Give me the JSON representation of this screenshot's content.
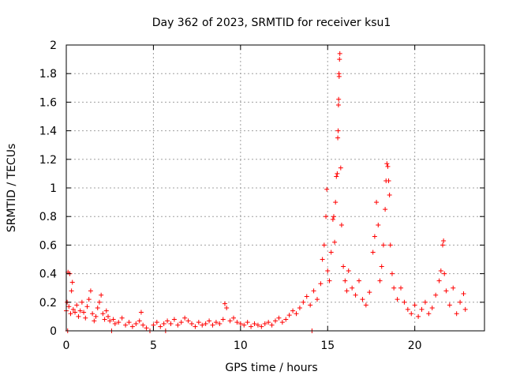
{
  "chart_data": {
    "type": "scatter",
    "title": "Day 362 of 2023, SRMTID for receiver ksu1",
    "xlabel": "GPS time / hours",
    "ylabel": "SRMTID / TECUs",
    "xlim": [
      0,
      24
    ],
    "ylim": [
      0,
      2
    ],
    "xticks": [
      0,
      5,
      10,
      15,
      20
    ],
    "yticks": [
      0,
      0.2,
      0.4,
      0.6,
      0.8,
      1,
      1.2,
      1.4,
      1.6,
      1.8,
      2
    ],
    "xtick_labels": [
      "0",
      "5",
      "10",
      "15",
      "20"
    ],
    "ytick_labels": [
      "0",
      "0.2",
      "0.4",
      "0.6",
      "0.8",
      "1",
      "1.2",
      "1.4",
      "1.6",
      "1.8",
      "2"
    ],
    "grid": true,
    "marker": "+",
    "color": "#ff0000",
    "series": [
      {
        "name": "ksu1",
        "points": [
          [
            0.0,
            0.14
          ],
          [
            0.05,
            0.2
          ],
          [
            0.08,
            0.0
          ],
          [
            0.1,
            0.41
          ],
          [
            0.15,
            0.17
          ],
          [
            0.2,
            0.4
          ],
          [
            0.25,
            0.12
          ],
          [
            0.3,
            0.28
          ],
          [
            0.35,
            0.34
          ],
          [
            0.4,
            0.15
          ],
          [
            0.5,
            0.13
          ],
          [
            0.6,
            0.18
          ],
          [
            0.7,
            0.1
          ],
          [
            0.8,
            0.14
          ],
          [
            0.9,
            0.2
          ],
          [
            1.0,
            0.13
          ],
          [
            1.1,
            0.09
          ],
          [
            1.2,
            0.17
          ],
          [
            1.3,
            0.22
          ],
          [
            1.4,
            0.28
          ],
          [
            1.5,
            0.12
          ],
          [
            1.6,
            0.07
          ],
          [
            1.7,
            0.1
          ],
          [
            1.8,
            0.16
          ],
          [
            1.9,
            0.2
          ],
          [
            2.0,
            0.25
          ],
          [
            2.1,
            0.12
          ],
          [
            2.2,
            0.08
          ],
          [
            2.3,
            0.14
          ],
          [
            2.4,
            0.1
          ],
          [
            2.5,
            0.07
          ],
          [
            2.6,
            0.0
          ],
          [
            2.7,
            0.08
          ],
          [
            2.8,
            0.05
          ],
          [
            3.0,
            0.06
          ],
          [
            3.2,
            0.09
          ],
          [
            3.4,
            0.04
          ],
          [
            3.6,
            0.06
          ],
          [
            3.8,
            0.03
          ],
          [
            4.0,
            0.05
          ],
          [
            4.2,
            0.07
          ],
          [
            4.3,
            0.13
          ],
          [
            4.4,
            0.04
          ],
          [
            4.6,
            0.02
          ],
          [
            4.8,
            0.0
          ],
          [
            5.0,
            0.04
          ],
          [
            5.2,
            0.06
          ],
          [
            5.4,
            0.03
          ],
          [
            5.6,
            0.05
          ],
          [
            5.7,
            0.0
          ],
          [
            5.8,
            0.07
          ],
          [
            6.0,
            0.05
          ],
          [
            6.2,
            0.08
          ],
          [
            6.4,
            0.04
          ],
          [
            6.6,
            0.06
          ],
          [
            6.8,
            0.09
          ],
          [
            7.0,
            0.07
          ],
          [
            7.2,
            0.05
          ],
          [
            7.4,
            0.03
          ],
          [
            7.6,
            0.06
          ],
          [
            7.8,
            0.04
          ],
          [
            8.0,
            0.05
          ],
          [
            8.2,
            0.07
          ],
          [
            8.4,
            0.04
          ],
          [
            8.6,
            0.06
          ],
          [
            8.8,
            0.05
          ],
          [
            9.0,
            0.08
          ],
          [
            9.1,
            0.19
          ],
          [
            9.2,
            0.16
          ],
          [
            9.4,
            0.07
          ],
          [
            9.6,
            0.09
          ],
          [
            9.8,
            0.06
          ],
          [
            10.0,
            0.05
          ],
          [
            10.2,
            0.04
          ],
          [
            10.4,
            0.06
          ],
          [
            10.6,
            0.03
          ],
          [
            10.8,
            0.05
          ],
          [
            11.0,
            0.04
          ],
          [
            11.2,
            0.03
          ],
          [
            11.4,
            0.05
          ],
          [
            11.6,
            0.06
          ],
          [
            11.8,
            0.04
          ],
          [
            12.0,
            0.07
          ],
          [
            12.2,
            0.09
          ],
          [
            12.4,
            0.06
          ],
          [
            12.6,
            0.08
          ],
          [
            12.8,
            0.11
          ],
          [
            13.0,
            0.14
          ],
          [
            13.2,
            0.12
          ],
          [
            13.4,
            0.16
          ],
          [
            13.6,
            0.2
          ],
          [
            13.8,
            0.24
          ],
          [
            14.0,
            0.18
          ],
          [
            14.1,
            0.0
          ],
          [
            14.2,
            0.28
          ],
          [
            14.4,
            0.22
          ],
          [
            14.6,
            0.33
          ],
          [
            14.7,
            0.5
          ],
          [
            14.8,
            0.6
          ],
          [
            14.9,
            0.8
          ],
          [
            14.95,
            0.99
          ],
          [
            15.0,
            0.42
          ],
          [
            15.1,
            0.35
          ],
          [
            15.2,
            0.55
          ],
          [
            15.3,
            0.78
          ],
          [
            15.35,
            0.8
          ],
          [
            15.4,
            0.62
          ],
          [
            15.45,
            0.9
          ],
          [
            15.5,
            1.08
          ],
          [
            15.55,
            1.1
          ],
          [
            15.58,
            1.35
          ],
          [
            15.6,
            1.4
          ],
          [
            15.62,
            1.58
          ],
          [
            15.63,
            1.62
          ],
          [
            15.65,
            1.8
          ],
          [
            15.66,
            1.78
          ],
          [
            15.68,
            1.9
          ],
          [
            15.7,
            1.94
          ],
          [
            15.75,
            1.14
          ],
          [
            15.8,
            0.74
          ],
          [
            15.9,
            0.45
          ],
          [
            16.0,
            0.35
          ],
          [
            16.1,
            0.28
          ],
          [
            16.2,
            0.42
          ],
          [
            16.4,
            0.3
          ],
          [
            16.6,
            0.25
          ],
          [
            16.8,
            0.35
          ],
          [
            17.0,
            0.22
          ],
          [
            17.2,
            0.18
          ],
          [
            17.4,
            0.27
          ],
          [
            17.6,
            0.55
          ],
          [
            17.7,
            0.66
          ],
          [
            17.8,
            0.9
          ],
          [
            17.9,
            0.74
          ],
          [
            18.0,
            0.35
          ],
          [
            18.1,
            0.45
          ],
          [
            18.2,
            0.6
          ],
          [
            18.3,
            0.85
          ],
          [
            18.35,
            1.05
          ],
          [
            18.4,
            1.17
          ],
          [
            18.45,
            1.15
          ],
          [
            18.5,
            1.05
          ],
          [
            18.55,
            0.95
          ],
          [
            18.6,
            0.6
          ],
          [
            18.7,
            0.4
          ],
          [
            18.8,
            0.3
          ],
          [
            19.0,
            0.22
          ],
          [
            19.2,
            0.3
          ],
          [
            19.4,
            0.2
          ],
          [
            19.6,
            0.15
          ],
          [
            19.8,
            0.12
          ],
          [
            20.0,
            0.18
          ],
          [
            20.2,
            0.1
          ],
          [
            20.4,
            0.15
          ],
          [
            20.6,
            0.2
          ],
          [
            20.8,
            0.12
          ],
          [
            21.0,
            0.16
          ],
          [
            21.2,
            0.25
          ],
          [
            21.4,
            0.35
          ],
          [
            21.5,
            0.42
          ],
          [
            21.6,
            0.6
          ],
          [
            21.65,
            0.63
          ],
          [
            21.7,
            0.4
          ],
          [
            21.8,
            0.28
          ],
          [
            22.0,
            0.18
          ],
          [
            22.2,
            0.3
          ],
          [
            22.4,
            0.12
          ],
          [
            22.6,
            0.2
          ],
          [
            22.8,
            0.26
          ],
          [
            22.9,
            0.15
          ]
        ]
      }
    ]
  }
}
